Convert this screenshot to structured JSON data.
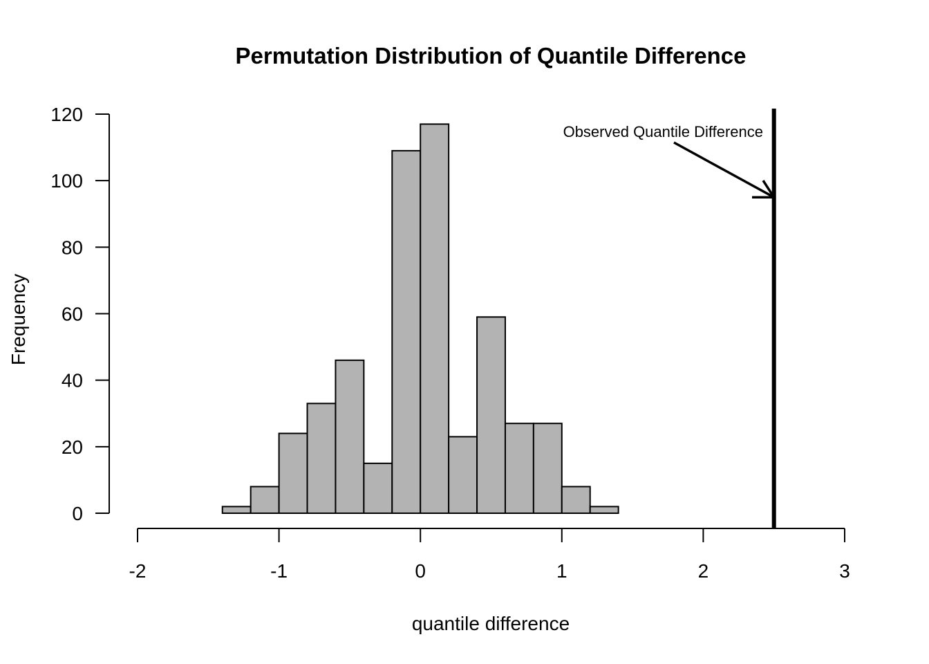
{
  "chart_data": {
    "type": "bar",
    "title": "Permutation Distribution of Quantile Difference",
    "xlabel": "quantile difference",
    "ylabel": "Frequency",
    "xlim": [
      -2,
      3
    ],
    "ylim": [
      0,
      120
    ],
    "x_ticks": [
      -2,
      -1,
      0,
      1,
      2,
      3
    ],
    "x_tick_labels": [
      "-2",
      "-1",
      "0",
      "1",
      "2",
      "3"
    ],
    "y_ticks": [
      0,
      20,
      40,
      60,
      80,
      100,
      120
    ],
    "y_tick_labels": [
      "0",
      "20",
      "40",
      "60",
      "80",
      "100",
      "120"
    ],
    "bin_edges": [
      -1.4,
      -1.2,
      -1.0,
      -0.8,
      -0.6,
      -0.4,
      -0.2,
      0.0,
      0.2,
      0.4,
      0.6,
      0.8,
      1.0,
      1.2,
      1.4
    ],
    "values": [
      2,
      8,
      24,
      33,
      46,
      15,
      109,
      117,
      23,
      59,
      27,
      27,
      8,
      2
    ],
    "bar_color": "#b3b3b3",
    "grid": false,
    "observed_line": {
      "x": 2.5,
      "color": "#000000"
    },
    "annotation": {
      "text": "Observed Quantile Difference",
      "arrow_to": [
        2.5,
        95
      ],
      "arrow_from": [
        1.8,
        111
      ]
    }
  }
}
